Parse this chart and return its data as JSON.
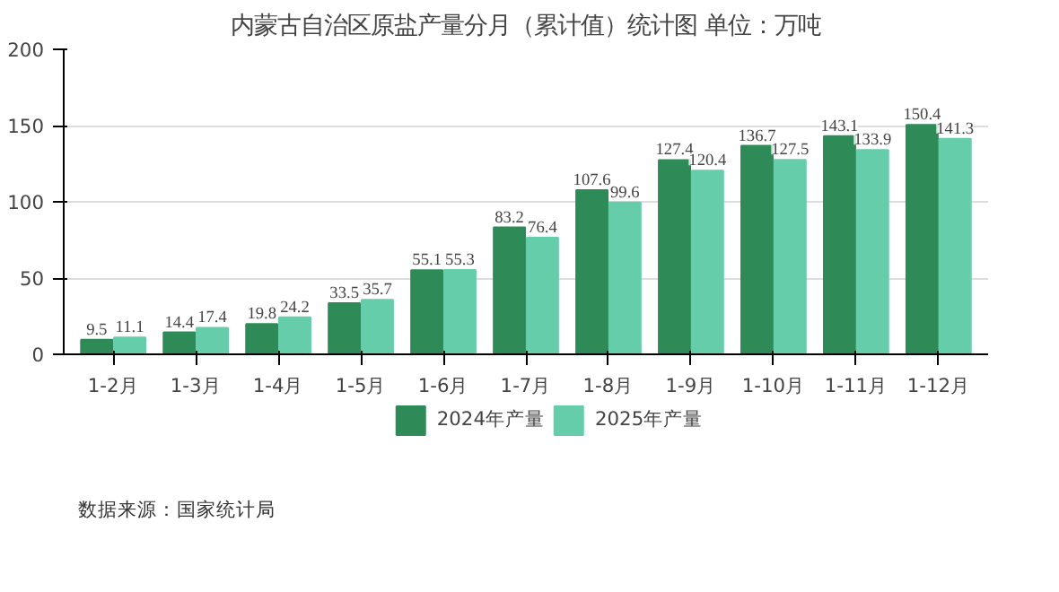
{
  "chart_data": {
    "type": "bar",
    "title": "内蒙古自治区原盐产量分月（累计值）统计图 单位：万吨",
    "categories": [
      "1-2月",
      "1-3月",
      "1-4月",
      "1-5月",
      "1-6月",
      "1-7月",
      "1-8月",
      "1-9月",
      "1-10月",
      "1-11月",
      "1-12月"
    ],
    "series": [
      {
        "name": "2024年产量",
        "color": "#2e8b57",
        "values": [
          9.5,
          14.4,
          19.8,
          33.5,
          55.1,
          83.2,
          107.6,
          127.4,
          136.7,
          143.1,
          150.4
        ]
      },
      {
        "name": "2025年产量",
        "color": "#66cdaa",
        "values": [
          11.1,
          17.4,
          24.2,
          35.7,
          55.3,
          76.4,
          99.6,
          120.4,
          127.5,
          133.9,
          141.3
        ]
      }
    ],
    "ylim": [
      0,
      200
    ],
    "yticks": [
      0,
      50,
      100,
      150,
      200
    ],
    "grid": "y",
    "legend": "bottom",
    "data_labels": true,
    "annotations": [
      "数据来源：国家统计局"
    ]
  }
}
